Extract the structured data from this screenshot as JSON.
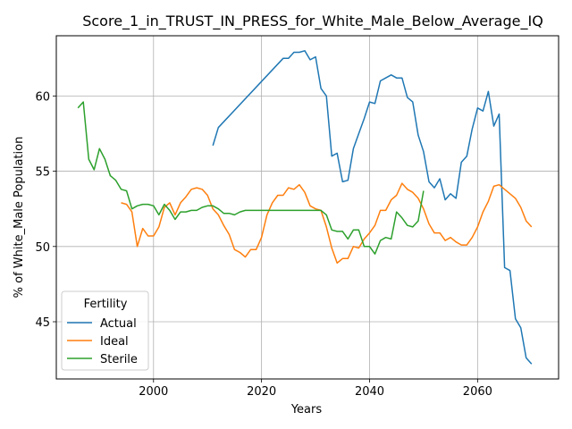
{
  "chart_data": {
    "type": "line",
    "title": "Score_1_in_TRUST_IN_PRESS_for_White_Male_Below_Average_IQ",
    "xlabel": "Years",
    "ylabel": "% of White_Male Population",
    "xlim": [
      1982,
      2075
    ],
    "ylim": [
      41.2,
      64.0
    ],
    "xticks": [
      2000,
      2020,
      2040,
      2060
    ],
    "yticks": [
      45,
      50,
      55,
      60
    ],
    "grid": true,
    "legend": {
      "title": "Fertility",
      "placement": "lower-left"
    },
    "series": [
      {
        "name": "Actual",
        "color": "#1f77b4",
        "x": [
          2011,
          2012,
          2024,
          2025,
          2026,
          2027,
          2028,
          2029,
          2030,
          2031,
          2032,
          2033,
          2034,
          2035,
          2036,
          2037,
          2038,
          2039,
          2040,
          2041,
          2042,
          2043,
          2044,
          2045,
          2046,
          2047,
          2048,
          2049,
          2050,
          2051,
          2052,
          2053,
          2054,
          2055,
          2056,
          2057,
          2058,
          2059,
          2060,
          2061,
          2062,
          2063,
          2064,
          2065,
          2066,
          2067,
          2068,
          2069,
          2070
        ],
        "y": [
          56.7,
          57.9,
          62.5,
          62.5,
          62.9,
          62.9,
          63.0,
          62.4,
          62.6,
          60.5,
          60.0,
          56.0,
          56.2,
          54.3,
          54.4,
          56.5,
          57.5,
          58.5,
          59.6,
          59.5,
          61.0,
          61.2,
          61.4,
          61.2,
          61.2,
          59.9,
          59.6,
          57.4,
          56.3,
          54.3,
          53.9,
          54.5,
          53.1,
          53.5,
          53.2,
          55.6,
          56.0,
          57.8,
          59.2,
          59.0,
          60.3,
          58.0,
          58.8,
          48.6,
          48.4,
          45.2,
          44.6,
          42.6,
          42.2
        ]
      },
      {
        "name": "Ideal",
        "color": "#ff7f0e",
        "x": [
          1994,
          1995,
          1996,
          1997,
          1998,
          1999,
          2000,
          2001,
          2002,
          2003,
          2004,
          2005,
          2006,
          2007,
          2008,
          2009,
          2010,
          2011,
          2012,
          2013,
          2014,
          2015,
          2016,
          2017,
          2018,
          2019,
          2020,
          2021,
          2022,
          2023,
          2024,
          2025,
          2026,
          2027,
          2028,
          2029,
          2030,
          2031,
          2032,
          2033,
          2034,
          2035,
          2036,
          2037,
          2038,
          2039,
          2040,
          2041,
          2042,
          2043,
          2044,
          2045,
          2046,
          2047,
          2048,
          2049,
          2050,
          2051,
          2052,
          2053,
          2054,
          2055,
          2056,
          2057,
          2058,
          2059,
          2060,
          2061,
          2062,
          2063,
          2064,
          2065,
          2066,
          2067,
          2068,
          2069,
          2070
        ],
        "y": [
          52.9,
          52.8,
          52.3,
          50.0,
          51.2,
          50.7,
          50.7,
          51.3,
          52.6,
          52.9,
          52.1,
          52.9,
          53.3,
          53.8,
          53.9,
          53.8,
          53.4,
          52.5,
          52.1,
          51.4,
          50.8,
          49.8,
          49.6,
          49.3,
          49.8,
          49.8,
          50.6,
          52.1,
          52.9,
          53.4,
          53.4,
          53.9,
          53.8,
          54.1,
          53.6,
          52.7,
          52.5,
          52.4,
          51.3,
          49.9,
          48.9,
          49.2,
          49.2,
          50.0,
          49.9,
          50.5,
          50.9,
          51.4,
          52.4,
          52.4,
          53.1,
          53.4,
          54.2,
          53.8,
          53.6,
          53.2,
          52.5,
          51.5,
          50.9,
          50.9,
          50.4,
          50.6,
          50.3,
          50.1,
          50.1,
          50.6,
          51.3,
          52.3,
          53.0,
          54.0,
          54.1,
          53.8,
          53.5,
          53.2,
          52.6,
          51.7,
          51.3
        ]
      },
      {
        "name": "Sterile",
        "color": "#2ca02c",
        "x": [
          1986,
          1987,
          1988,
          1989,
          1990,
          1991,
          1992,
          1993,
          1994,
          1995,
          1996,
          1997,
          1998,
          1999,
          2000,
          2001,
          2002,
          2003,
          2004,
          2005,
          2006,
          2007,
          2008,
          2009,
          2010,
          2011,
          2012,
          2013,
          2014,
          2015,
          2016,
          2017,
          2018,
          2019,
          2020,
          2021,
          2022,
          2023,
          2024,
          2025,
          2026,
          2027,
          2028,
          2029,
          2030,
          2031,
          2032,
          2033,
          2034,
          2035,
          2036,
          2037,
          2038,
          2039,
          2040,
          2041,
          2042,
          2043,
          2044,
          2045,
          2046,
          2047,
          2048,
          2049,
          2050
        ],
        "y": [
          59.2,
          59.6,
          55.8,
          55.1,
          56.5,
          55.8,
          54.7,
          54.4,
          53.8,
          53.7,
          52.5,
          52.7,
          52.8,
          52.8,
          52.7,
          52.1,
          52.8,
          52.4,
          51.8,
          52.3,
          52.3,
          52.4,
          52.4,
          52.6,
          52.7,
          52.7,
          52.5,
          52.2,
          52.2,
          52.1,
          52.3,
          52.4,
          52.4,
          52.4,
          52.4,
          52.4,
          52.4,
          52.4,
          52.4,
          52.4,
          52.4,
          52.4,
          52.4,
          52.4,
          52.4,
          52.4,
          52.1,
          51.1,
          51.0,
          51.0,
          50.5,
          51.1,
          51.1,
          50.0,
          50.0,
          49.5,
          50.4,
          50.6,
          50.5,
          52.3,
          51.9,
          51.4,
          51.3,
          51.7,
          53.7
        ]
      }
    ]
  }
}
